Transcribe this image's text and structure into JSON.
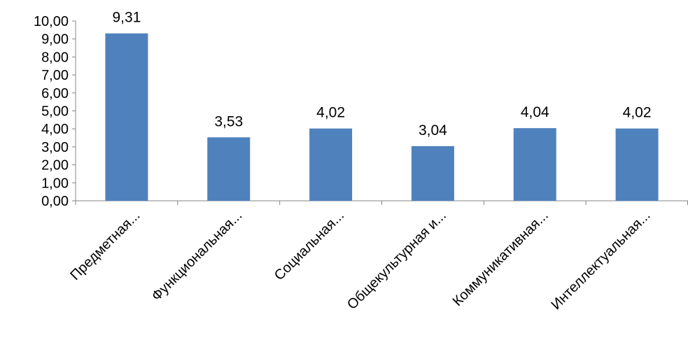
{
  "chart_data": {
    "type": "bar",
    "categories": [
      "Предметная...",
      "Функциональная...",
      "Социальная...",
      "Общекультурная и...",
      "Коммуникативная...",
      "Интеллектуальная..."
    ],
    "values": [
      9.31,
      3.53,
      4.02,
      3.04,
      4.04,
      4.02
    ],
    "data_labels": [
      "9,31",
      "3,53",
      "4,02",
      "3,04",
      "4,04",
      "4,02"
    ],
    "y_ticks": [
      0,
      1,
      2,
      3,
      4,
      5,
      6,
      7,
      8,
      9,
      10
    ],
    "y_tick_labels": [
      "0,00",
      "1,00",
      "2,00",
      "3,00",
      "4,00",
      "5,00",
      "6,00",
      "7,00",
      "8,00",
      "9,00",
      "10,00"
    ],
    "ylim": [
      0,
      10
    ],
    "title": "",
    "xlabel": "",
    "ylabel": "",
    "grid": false,
    "legend": "none",
    "bar_color": "#4F81BD",
    "axis_color": "#868686"
  }
}
